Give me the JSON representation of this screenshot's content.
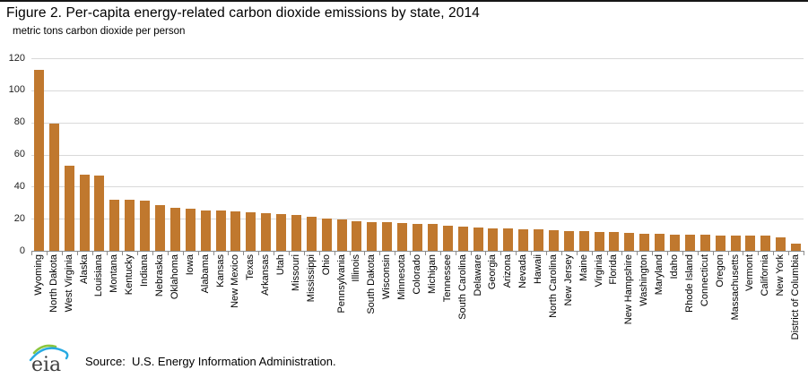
{
  "page": {
    "title": "Figure 2. Per-capita energy-related carbon dioxide emissions by state, 2014",
    "subtitle": "metric tons carbon dioxide per person",
    "source": "Source:  U.S. Energy Information Administration.",
    "logo_text": "eia"
  },
  "colors": {
    "bar": "#c0782e",
    "gridline": "#d9d9d9",
    "axis": "#8c8c8c",
    "logo_text": "#3f3f3f",
    "logo_arc_green": "#8cc63e",
    "logo_arc_blue": "#27aae1"
  },
  "chart_data": {
    "type": "bar",
    "title": "Figure 2. Per-capita energy-related carbon dioxide emissions by state, 2014",
    "subtitle": "metric tons carbon dioxide per person",
    "xlabel": "",
    "ylabel": "metric tons carbon dioxide per person",
    "ylim": [
      0,
      120
    ],
    "yticks": [
      0,
      20,
      40,
      60,
      80,
      100,
      120
    ],
    "grid": "horizontal",
    "legend": "none",
    "bar_color": "#c0782e",
    "categories": [
      "Wyoming",
      "North Dakota",
      "West Virginia",
      "Alaska",
      "Louisiana",
      "Montana",
      "Kentucky",
      "Indiana",
      "Nebraska",
      "Oklahoma",
      "Iowa",
      "Alabama",
      "Kansas",
      "New Mexico",
      "Texas",
      "Arkansas",
      "Utah",
      "Missouri",
      "Mississippi",
      "Ohio",
      "Pennsylvania",
      "Illinois",
      "South Dakota",
      "Wisconsin",
      "Minnesota",
      "Colorado",
      "Michigan",
      "Tennessee",
      "South Carolina",
      "Delaware",
      "Georgia",
      "Arizona",
      "Nevada",
      "Hawaii",
      "North Carolina",
      "New Jersey",
      "Maine",
      "Virginia",
      "Florida",
      "New Hampshire",
      "Washington",
      "Maryland",
      "Idaho",
      "Rhode Island",
      "Connecticut",
      "Oregon",
      "Massachusetts",
      "Vermont",
      "California",
      "New York",
      "District of Columbia"
    ],
    "values": [
      112.6,
      79.2,
      53.1,
      47.7,
      47.0,
      32.0,
      31.8,
      31.5,
      28.2,
      27.0,
      26.3,
      25.2,
      24.9,
      24.5,
      24.2,
      23.7,
      22.8,
      22.1,
      21.3,
      20.1,
      19.5,
      18.5,
      18.0,
      17.6,
      17.4,
      17.0,
      16.5,
      15.9,
      15.1,
      14.4,
      14.1,
      13.7,
      13.4,
      13.2,
      12.9,
      12.5,
      12.3,
      12.0,
      11.5,
      11.1,
      10.7,
      10.4,
      10.2,
      10.1,
      9.9,
      9.5,
      9.4,
      9.4,
      9.3,
      8.6,
      4.7
    ]
  }
}
